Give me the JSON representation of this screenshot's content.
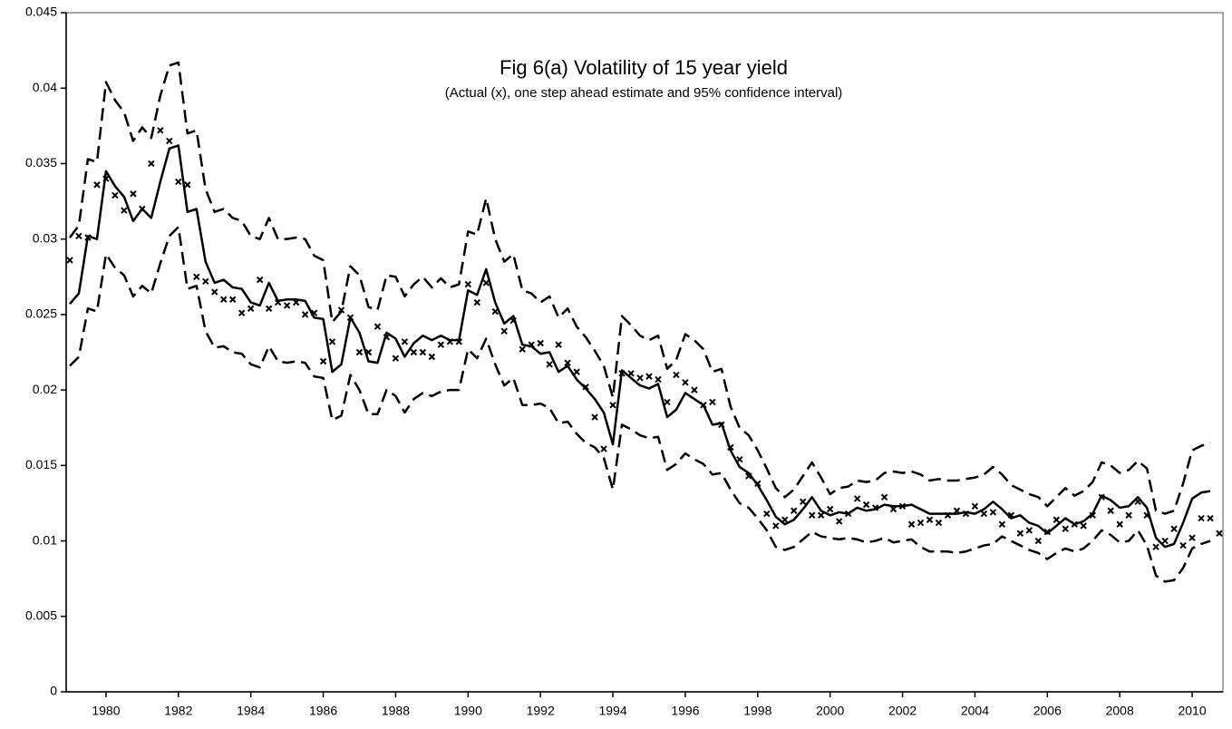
{
  "chart_data": {
    "type": "line",
    "title": "Fig 6(a) Volatility of 15 year yield",
    "subtitle": "(Actual (x), one step ahead estimate and 95% confidence interval)",
    "x": [
      1979,
      1979.25,
      1979.5,
      1979.75,
      1980,
      1980.25,
      1980.5,
      1980.75,
      1981,
      1981.25,
      1981.5,
      1981.75,
      1982,
      1982.25,
      1982.5,
      1982.75,
      1983,
      1983.25,
      1983.5,
      1983.75,
      1984,
      1984.25,
      1984.5,
      1984.75,
      1985,
      1985.25,
      1985.5,
      1985.75,
      1986,
      1986.25,
      1986.5,
      1986.75,
      1987,
      1987.25,
      1987.5,
      1987.75,
      1988,
      1988.25,
      1988.5,
      1988.75,
      1989,
      1989.25,
      1989.5,
      1989.75,
      1990,
      1990.25,
      1990.5,
      1990.75,
      1991,
      1991.25,
      1991.5,
      1991.75,
      1992,
      1992.25,
      1992.5,
      1992.75,
      1993,
      1993.25,
      1993.5,
      1993.75,
      1994,
      1994.25,
      1994.5,
      1994.75,
      1995,
      1995.25,
      1995.5,
      1995.75,
      1996,
      1996.25,
      1996.5,
      1996.75,
      1997,
      1997.25,
      1997.5,
      1997.75,
      1998,
      1998.25,
      1998.5,
      1998.75,
      1999,
      1999.25,
      1999.5,
      1999.75,
      2000,
      2000.25,
      2000.5,
      2000.75,
      2001,
      2001.25,
      2001.5,
      2001.75,
      2002,
      2002.25,
      2002.5,
      2002.75,
      2003,
      2003.25,
      2003.5,
      2003.75,
      2004,
      2004.25,
      2004.5,
      2004.75,
      2005,
      2005.25,
      2005.5,
      2005.75,
      2006,
      2006.25,
      2006.5,
      2006.75,
      2007,
      2007.25,
      2007.5,
      2007.75,
      2008,
      2008.25,
      2008.5,
      2008.75,
      2009,
      2009.25,
      2009.5,
      2009.75,
      2010,
      2010.25,
      2010.5,
      2010.75
    ],
    "series": [
      {
        "style": "marker",
        "color": "#000000",
        "values": [
          0.0286,
          0.0302,
          0.0301,
          0.0336,
          0.034,
          0.0329,
          0.0319,
          0.033,
          0.032,
          0.035,
          0.0372,
          0.0365,
          0.0338,
          0.0336,
          0.0275,
          0.0272,
          0.0265,
          0.026,
          0.026,
          0.0251,
          0.0254,
          0.0273,
          0.0254,
          0.0258,
          0.0256,
          0.0258,
          0.025,
          0.0251,
          0.0219,
          0.0232,
          0.0253,
          0.0248,
          0.0225,
          0.0225,
          0.0242,
          0.0235,
          0.0221,
          0.0232,
          0.0225,
          0.0225,
          0.0222,
          0.023,
          0.0232,
          0.0232,
          0.027,
          0.0258,
          0.0271,
          0.0252,
          0.0239,
          0.0246,
          0.0227,
          0.023,
          0.0231,
          0.0217,
          0.023,
          0.0218,
          0.0212,
          0.0202,
          0.0182,
          0.0161,
          0.019,
          0.0211,
          0.0211,
          0.0208,
          0.0209,
          0.0207,
          0.0192,
          0.021,
          0.0205,
          0.02,
          0.019,
          0.0192,
          0.0177,
          0.0162,
          0.0154,
          0.0143,
          0.0138,
          0.0118,
          0.011,
          0.0114,
          0.012,
          0.0126,
          0.0117,
          0.0117,
          0.0121,
          0.0113,
          0.0118,
          0.0128,
          0.0124,
          0.0122,
          0.0129,
          0.0121,
          0.0123,
          0.0111,
          0.0112,
          0.0114,
          0.0112,
          0.0117,
          0.012,
          0.0118,
          0.0123,
          0.0118,
          0.0119,
          0.0111,
          0.0117,
          0.0105,
          0.0107,
          0.01,
          0.0106,
          0.0114,
          0.0108,
          0.0111,
          0.011,
          0.0117,
          0.0129,
          0.012,
          0.0111,
          0.0117,
          0.0126,
          0.0117,
          0.0096,
          0.01,
          0.0108,
          0.0097,
          0.0102,
          0.0115,
          0.0115,
          0.0105
        ]
      },
      {
        "style": "solid",
        "color": "#000000",
        "values": [
          0.0257,
          0.0264,
          0.0302,
          0.03,
          0.0345,
          0.0335,
          0.0328,
          0.0312,
          0.032,
          0.0314,
          0.0338,
          0.036,
          0.0362,
          0.0318,
          0.032,
          0.0285,
          0.0271,
          0.0273,
          0.0268,
          0.0267,
          0.0258,
          0.0256,
          0.0271,
          0.0259,
          0.026,
          0.026,
          0.0259,
          0.0248,
          0.0247,
          0.0212,
          0.0217,
          0.0248,
          0.0238,
          0.0219,
          0.0218,
          0.0238,
          0.0234,
          0.0222,
          0.0231,
          0.0236,
          0.0233,
          0.0236,
          0.0233,
          0.0233,
          0.0266,
          0.0263,
          0.028,
          0.0258,
          0.0244,
          0.0249,
          0.023,
          0.0229,
          0.0224,
          0.0225,
          0.0212,
          0.0216,
          0.0207,
          0.0201,
          0.0194,
          0.0185,
          0.0164,
          0.0213,
          0.0208,
          0.0203,
          0.0201,
          0.0204,
          0.0182,
          0.0187,
          0.0198,
          0.0194,
          0.019,
          0.0177,
          0.0178,
          0.016,
          0.0149,
          0.0145,
          0.0137,
          0.0127,
          0.0116,
          0.0111,
          0.0114,
          0.0121,
          0.0129,
          0.012,
          0.0117,
          0.0119,
          0.0118,
          0.0122,
          0.012,
          0.0121,
          0.0124,
          0.0123,
          0.0123,
          0.0124,
          0.0121,
          0.0118,
          0.0118,
          0.0118,
          0.0118,
          0.0119,
          0.0118,
          0.0121,
          0.0126,
          0.0121,
          0.0115,
          0.0117,
          0.0112,
          0.011,
          0.0105,
          0.011,
          0.0115,
          0.0111,
          0.0113,
          0.0118,
          0.013,
          0.0127,
          0.0122,
          0.0123,
          0.0129,
          0.0122,
          0.0102,
          0.0096,
          0.0098,
          0.0112,
          0.0128,
          0.0132,
          0.0133,
          null
        ]
      },
      {
        "style": "dashed",
        "color": "#000000",
        "values": [
          0.0301,
          0.0309,
          0.0353,
          0.0351,
          0.0404,
          0.0392,
          0.0384,
          0.0365,
          0.0374,
          0.0367,
          0.0395,
          0.0415,
          0.0417,
          0.037,
          0.0372,
          0.0333,
          0.0318,
          0.032,
          0.0314,
          0.0312,
          0.0302,
          0.03,
          0.0314,
          0.03,
          0.03,
          0.0301,
          0.03,
          0.0289,
          0.0286,
          0.0245,
          0.0252,
          0.0282,
          0.0276,
          0.0255,
          0.0253,
          0.0276,
          0.0275,
          0.0262,
          0.027,
          0.0275,
          0.0268,
          0.0274,
          0.0268,
          0.027,
          0.0305,
          0.0303,
          0.0327,
          0.03,
          0.0285,
          0.029,
          0.0266,
          0.0264,
          0.0258,
          0.0262,
          0.0248,
          0.0254,
          0.0242,
          0.0235,
          0.0226,
          0.0216,
          0.0195,
          0.0249,
          0.0243,
          0.0236,
          0.0233,
          0.0236,
          0.0214,
          0.022,
          0.0237,
          0.0233,
          0.0227,
          0.0212,
          0.0214,
          0.0189,
          0.0175,
          0.017,
          0.016,
          0.0148,
          0.0135,
          0.0129,
          0.0134,
          0.0143,
          0.0152,
          0.0142,
          0.0131,
          0.0135,
          0.0136,
          0.014,
          0.0139,
          0.014,
          0.0145,
          0.0146,
          0.0145,
          0.0146,
          0.0144,
          0.014,
          0.0141,
          0.014,
          0.014,
          0.0141,
          0.0142,
          0.0144,
          0.0149,
          0.0144,
          0.0137,
          0.0134,
          0.0131,
          0.0129,
          0.0123,
          0.0129,
          0.0135,
          0.013,
          0.0133,
          0.0139,
          0.0152,
          0.015,
          0.0145,
          0.0147,
          0.0153,
          0.0148,
          0.012,
          0.0118,
          0.012,
          0.0138,
          0.016,
          0.0163,
          0.0165,
          null
        ]
      },
      {
        "style": "dashed",
        "color": "#000000",
        "values": [
          0.0216,
          0.0222,
          0.0254,
          0.0252,
          0.029,
          0.0281,
          0.0276,
          0.0262,
          0.0269,
          0.0264,
          0.0284,
          0.0302,
          0.0308,
          0.0267,
          0.0269,
          0.0239,
          0.0228,
          0.0229,
          0.0225,
          0.0224,
          0.0217,
          0.0215,
          0.0229,
          0.0219,
          0.0218,
          0.0219,
          0.0218,
          0.0209,
          0.0208,
          0.018,
          0.0183,
          0.021,
          0.02,
          0.0184,
          0.0184,
          0.02,
          0.0196,
          0.0185,
          0.0194,
          0.0198,
          0.0196,
          0.0199,
          0.02,
          0.02,
          0.0227,
          0.0221,
          0.0234,
          0.0217,
          0.0203,
          0.0208,
          0.019,
          0.019,
          0.0191,
          0.0188,
          0.0178,
          0.0179,
          0.0171,
          0.0165,
          0.0162,
          0.0155,
          0.0134,
          0.0177,
          0.0174,
          0.017,
          0.0168,
          0.0169,
          0.0147,
          0.0151,
          0.0158,
          0.0154,
          0.0151,
          0.0144,
          0.0145,
          0.0134,
          0.0125,
          0.0122,
          0.0115,
          0.0107,
          0.0096,
          0.0094,
          0.0096,
          0.0101,
          0.0106,
          0.0103,
          0.0102,
          0.0101,
          0.0102,
          0.0101,
          0.0099,
          0.01,
          0.0102,
          0.0099,
          0.01,
          0.0101,
          0.0096,
          0.0093,
          0.0093,
          0.0093,
          0.0092,
          0.0093,
          0.0095,
          0.0097,
          0.0098,
          0.0103,
          0.01,
          0.0097,
          0.0094,
          0.0092,
          0.0088,
          0.0092,
          0.0095,
          0.0093,
          0.0095,
          0.01,
          0.0107,
          0.0104,
          0.0099,
          0.01,
          0.0107,
          0.0097,
          0.0077,
          0.0073,
          0.0074,
          0.0082,
          0.0095,
          0.0098,
          0.01,
          null
        ]
      }
    ],
    "xlim": [
      1978.9,
      2010.85
    ],
    "xticks": [
      1980,
      1982,
      1984,
      1986,
      1988,
      1990,
      1992,
      1994,
      1996,
      1998,
      2000,
      2002,
      2004,
      2006,
      2008,
      2010
    ],
    "ylim": [
      0,
      0.045
    ],
    "yticks": [
      0,
      0.005,
      0.01,
      0.015,
      0.02,
      0.025,
      0.03,
      0.035,
      0.04,
      0.045
    ],
    "grid": false
  }
}
